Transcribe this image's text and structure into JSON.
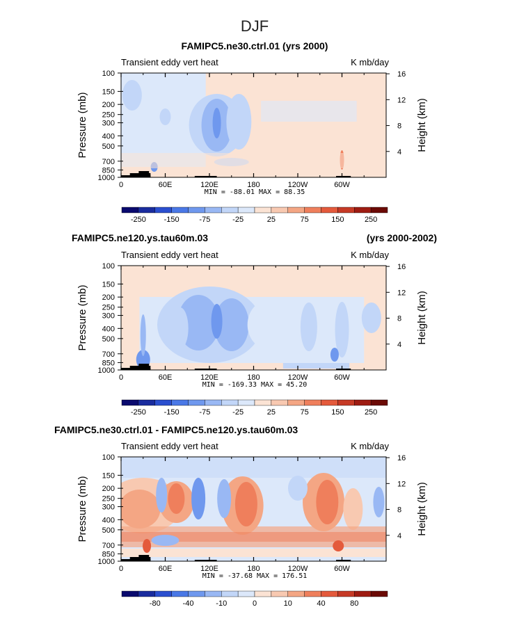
{
  "page_title": "DJF",
  "colors": {
    "levels": [
      "#0a0a6e",
      "#1a2c9e",
      "#2b4fcf",
      "#4a78e6",
      "#6f98ee",
      "#99b8f4",
      "#c2d6f8",
      "#dce8fa",
      "#fbe3d4",
      "#f8c9b1",
      "#f4a684",
      "#ef7f5c",
      "#e45a3c",
      "#c63a26",
      "#9e1c12",
      "#6b0a05"
    ],
    "topography": "#000000"
  },
  "chart_data": [
    {
      "type": "contour",
      "title": "FAMIPC5.ne30.ctrl.01 (yrs 2000)",
      "subtitle_left": "Transient eddy vert heat",
      "subtitle_right": "K mb/day",
      "ylabel_left": "Pressure (mb)",
      "ylabel_right": "Height (km)",
      "x_ticks": [
        "0",
        "60E",
        "120E",
        "180",
        "120W",
        "60W"
      ],
      "y_ticks": [
        "100",
        "150",
        "200",
        "250",
        "300",
        "400",
        "500",
        "700",
        "850",
        "1000"
      ],
      "y2_ticks": [
        "16",
        "12",
        "8",
        "4"
      ],
      "minmax": "MIN = -88.01   MAX =  88.35",
      "colorbar_labels": [
        "-250",
        "-150",
        "-75",
        "-25",
        "25",
        "75",
        "150",
        "250"
      ]
    },
    {
      "type": "contour",
      "title": "FAMIPC5.ne120.ys.tau60m.03",
      "title_right": "(yrs 2000-2002)",
      "subtitle_left": "Transient eddy vert heat",
      "subtitle_right": "K mb/day",
      "ylabel_left": "Pressure (mb)",
      "ylabel_right": "Height (km)",
      "x_ticks": [
        "0",
        "60E",
        "120E",
        "180",
        "120W",
        "60W"
      ],
      "y_ticks": [
        "100",
        "150",
        "200",
        "250",
        "300",
        "400",
        "500",
        "700",
        "850",
        "1000"
      ],
      "y2_ticks": [
        "16",
        "12",
        "8",
        "4"
      ],
      "minmax": "MIN = -169.33   MAX =  45.20",
      "colorbar_labels": [
        "-250",
        "-150",
        "-75",
        "-25",
        "25",
        "75",
        "150",
        "250"
      ]
    },
    {
      "type": "contour",
      "title": "FAMIPC5.ne30.ctrl.01 - FAMIPC5.ne120.ys.tau60m.03",
      "subtitle_left": "Transient eddy vert heat",
      "subtitle_right": "K mb/day",
      "ylabel_left": "Pressure (mb)",
      "ylabel_right": "Height (km)",
      "x_ticks": [
        "0",
        "60E",
        "120E",
        "180",
        "120W",
        "60W"
      ],
      "y_ticks": [
        "100",
        "150",
        "200",
        "250",
        "300",
        "400",
        "500",
        "700",
        "850",
        "1000"
      ],
      "y2_ticks": [
        "16",
        "12",
        "8",
        "4"
      ],
      "minmax": "MIN = -37.68   MAX = 176.51",
      "colorbar_labels": [
        "-80",
        "-40",
        "-10",
        "0",
        "10",
        "40",
        "80"
      ]
    }
  ]
}
